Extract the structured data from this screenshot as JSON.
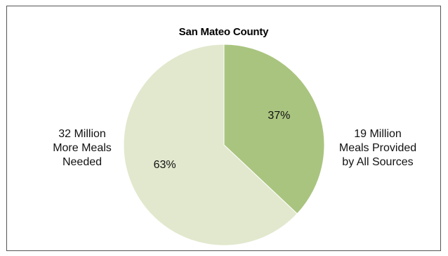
{
  "chart_data": {
    "type": "pie",
    "title": "San Mateo County",
    "slices": [
      {
        "name": "19 Million Meals Provided by All Sources",
        "label_lines": [
          "19 Million",
          "Meals Provided",
          "by All Sources"
        ],
        "value": 37,
        "percent_label": "37%",
        "color": "#a9c47f"
      },
      {
        "name": "32 Million More Meals Needed",
        "label_lines": [
          "32 Million",
          "More Meals",
          "Needed"
        ],
        "value": 63,
        "percent_label": "63%",
        "color": "#e1e8cd"
      }
    ]
  }
}
